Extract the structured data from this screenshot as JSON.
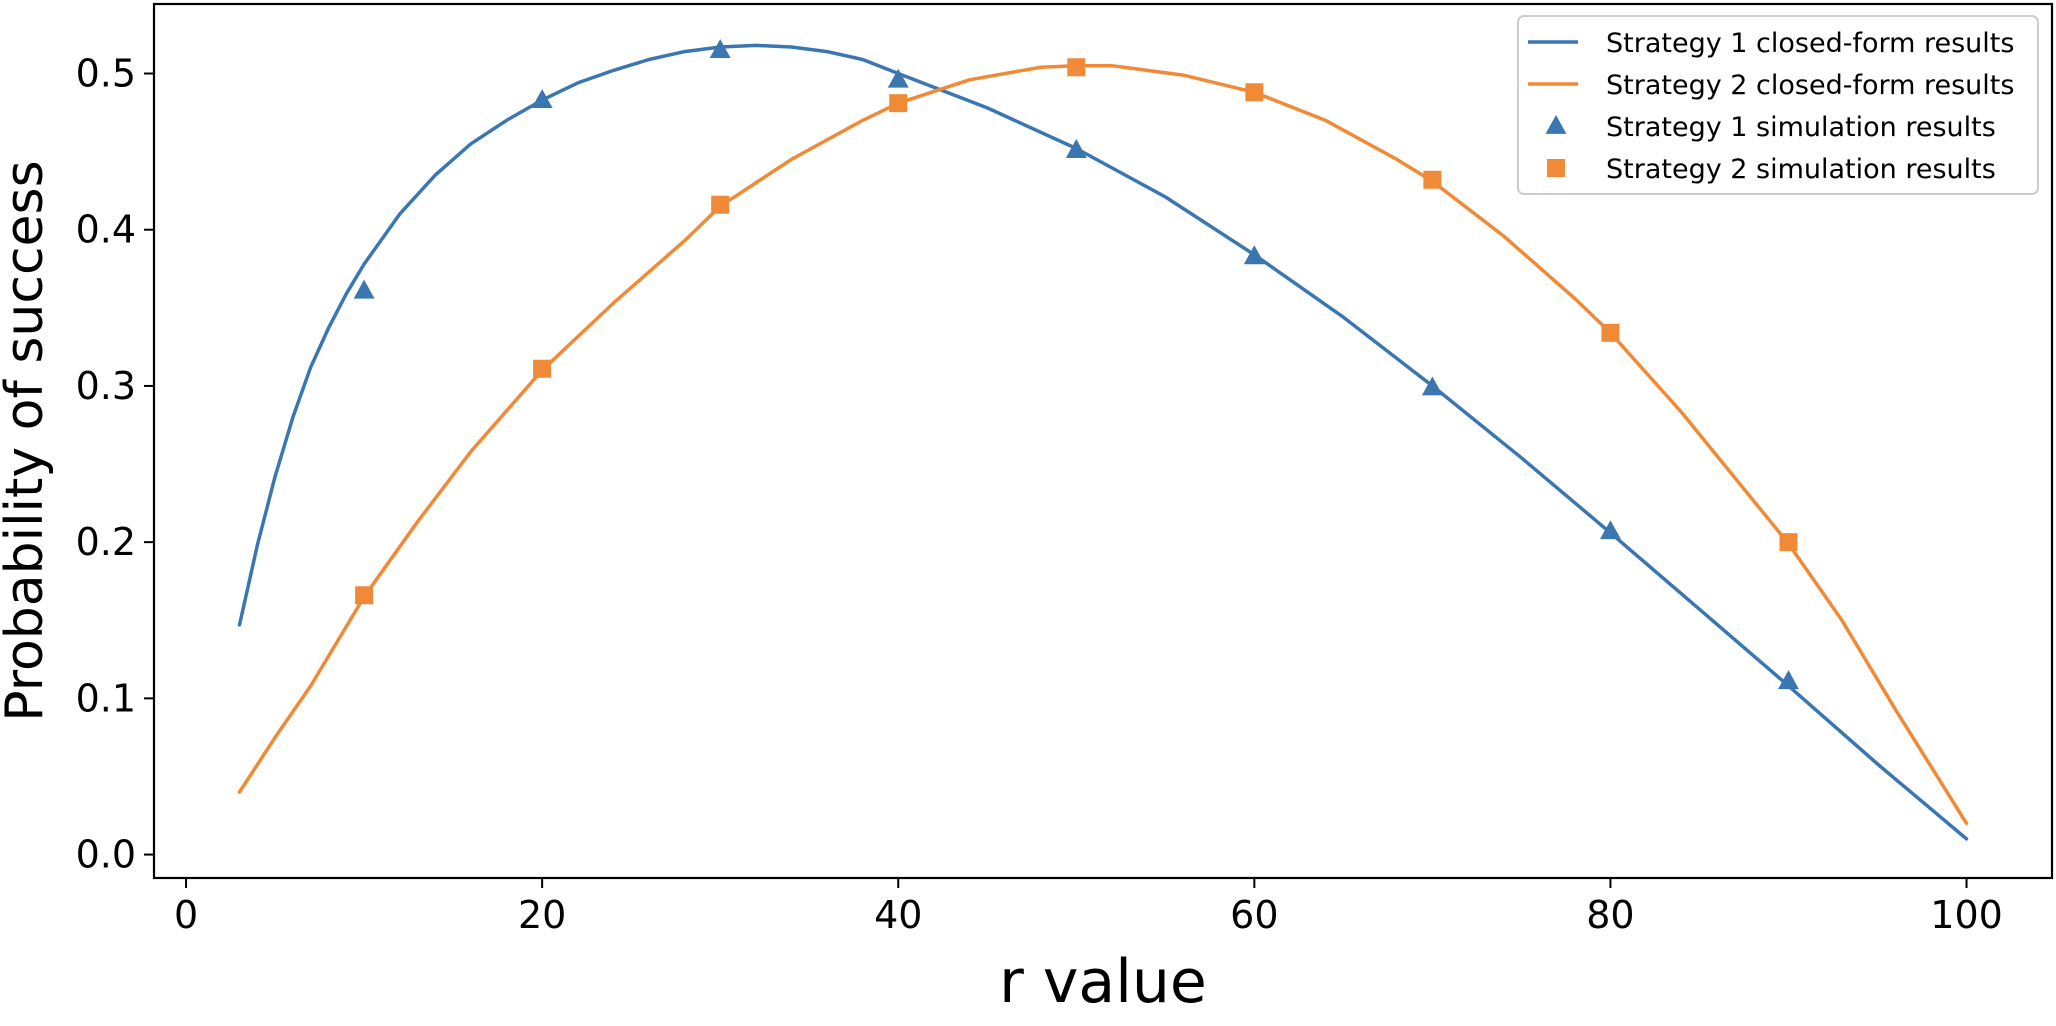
{
  "chart_data": {
    "type": "line",
    "title": "",
    "xlabel": "r value",
    "ylabel": "Probability of success",
    "xlim": [
      -1.8,
      104.8
    ],
    "ylim": [
      -0.015,
      0.5445
    ],
    "x_ticks": [
      0,
      20,
      40,
      60,
      80,
      100
    ],
    "y_ticks": [
      0.0,
      0.1,
      0.2,
      0.3,
      0.4,
      0.5
    ],
    "x_tick_labels": [
      "0",
      "20",
      "40",
      "60",
      "80",
      "100"
    ],
    "y_tick_labels": [
      "0.0",
      "0.1",
      "0.2",
      "0.3",
      "0.4",
      "0.5"
    ],
    "grid": false,
    "legend_position": "top-right",
    "series": [
      {
        "name": "Strategy 1 closed-form results",
        "kind": "line",
        "color": "#3a76b0",
        "x": [
          3,
          4,
          5,
          6,
          7,
          8,
          9,
          10,
          12,
          14,
          16,
          18,
          20,
          22,
          24,
          26,
          28,
          30,
          32,
          34,
          36,
          38,
          40,
          45,
          50,
          55,
          60,
          65,
          70,
          75,
          80,
          85,
          90,
          95,
          100
        ],
        "y": [
          0.147,
          0.198,
          0.242,
          0.28,
          0.312,
          0.337,
          0.359,
          0.378,
          0.41,
          0.435,
          0.455,
          0.47,
          0.483,
          0.494,
          0.502,
          0.509,
          0.514,
          0.517,
          0.518,
          0.517,
          0.514,
          0.509,
          0.5,
          0.478,
          0.452,
          0.421,
          0.384,
          0.344,
          0.3,
          0.254,
          0.206,
          0.157,
          0.108,
          0.058,
          0.01
        ]
      },
      {
        "name": "Strategy 2 closed-form results",
        "kind": "line",
        "color": "#f08a36",
        "x": [
          3,
          5,
          7,
          10,
          13,
          16,
          20,
          24,
          28,
          30,
          34,
          38,
          40,
          44,
          48,
          50,
          52,
          56,
          60,
          64,
          68,
          70,
          74,
          78,
          80,
          84,
          88,
          90,
          93,
          96,
          100
        ],
        "y": [
          0.04,
          0.075,
          0.108,
          0.165,
          0.213,
          0.258,
          0.31,
          0.353,
          0.393,
          0.415,
          0.445,
          0.47,
          0.481,
          0.496,
          0.504,
          0.505,
          0.505,
          0.499,
          0.488,
          0.47,
          0.445,
          0.431,
          0.396,
          0.356,
          0.334,
          0.283,
          0.227,
          0.199,
          0.15,
          0.093,
          0.02
        ]
      },
      {
        "name": "Strategy 1 simulation results",
        "kind": "scatter",
        "marker": "triangle",
        "color": "#3a76b0",
        "x": [
          10,
          20,
          30,
          40,
          50,
          60,
          70,
          80,
          90
        ],
        "y": [
          0.361,
          0.483,
          0.515,
          0.496,
          0.451,
          0.383,
          0.299,
          0.207,
          0.111
        ]
      },
      {
        "name": "Strategy 2 simulation results",
        "kind": "scatter",
        "marker": "square",
        "color": "#f08a36",
        "x": [
          10,
          20,
          30,
          40,
          50,
          60,
          70,
          80,
          90
        ],
        "y": [
          0.166,
          0.311,
          0.416,
          0.481,
          0.504,
          0.488,
          0.432,
          0.334,
          0.2
        ]
      }
    ]
  }
}
